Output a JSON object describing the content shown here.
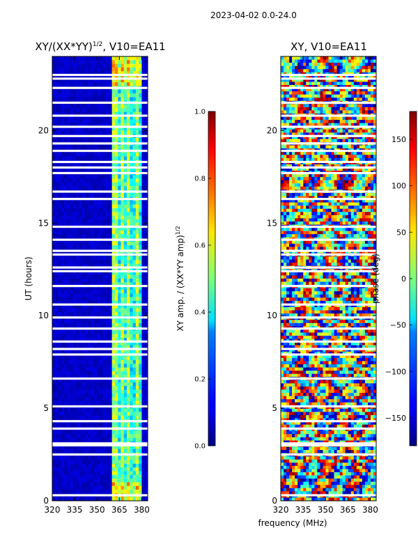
{
  "suptitle": "2023-04-02 0.0-24.0",
  "shared_xlabel": "frequency (MHz)",
  "chart_data": [
    {
      "type": "heatmap",
      "title": "XY/(XX*YY)^{1/2}, V10=EA11",
      "title_main": "XY/(XX*YY)",
      "title_sup": "1/2",
      "title_tail": ", V10=EA11",
      "xlabel": "frequency (MHz)",
      "ylabel": "UT (hours)",
      "xlim": [
        320,
        384
      ],
      "ylim": [
        0,
        24
      ],
      "x_ticks": [
        320,
        335,
        350,
        365,
        380
      ],
      "y_ticks": [
        0,
        5,
        10,
        15,
        20
      ],
      "colorbar": {
        "label": "XY amp. / (XX*YY amp)^{1/2}",
        "label_main": "XY amp. / (XX*YY amp)",
        "label_sup": "1/2",
        "range": [
          0.0,
          1.0
        ],
        "ticks": [
          "0.0",
          "0.2",
          "0.4",
          "0.6",
          "0.8",
          "1.0"
        ],
        "colormap": "jet"
      },
      "flagged_ut_hours": [
        0.3,
        2.5,
        3.0,
        3.1,
        3.9,
        4.3,
        5.1,
        6.6,
        7.9,
        8.2,
        8.6,
        9.3,
        9.9,
        10.6,
        11.6,
        12.4,
        12.6,
        13.3,
        13.5,
        14.1,
        14.8,
        16.3,
        16.7,
        17.7,
        18.0,
        18.3,
        18.9,
        19.3,
        19.7,
        20.2,
        20.8,
        21.5,
        22.3,
        22.8,
        23.0
      ],
      "high_amplitude_band_mhz": [
        361,
        380
      ]
    },
    {
      "type": "heatmap",
      "title": "XY, V10=EA11",
      "xlabel": "frequency (MHz)",
      "ylabel": "",
      "xlim": [
        320,
        384
      ],
      "ylim": [
        0,
        24
      ],
      "x_ticks": [
        320,
        335,
        350,
        365,
        380
      ],
      "y_ticks": [
        0,
        5,
        10,
        15,
        20
      ],
      "colorbar": {
        "label": "phase (deg)",
        "range": [
          -180,
          180
        ],
        "ticks": [
          "150",
          "100",
          "50",
          "0",
          "−50",
          "−100",
          "−150"
        ],
        "colormap": "jet"
      },
      "flagged_ut_hours": [
        0.3,
        2.5,
        3.0,
        3.1,
        3.9,
        4.3,
        5.1,
        6.6,
        7.9,
        8.2,
        8.6,
        9.3,
        9.9,
        10.6,
        11.6,
        12.4,
        12.6,
        13.3,
        13.5,
        14.1,
        14.8,
        16.3,
        16.7,
        17.7,
        18.0,
        18.3,
        18.9,
        19.3,
        19.7,
        20.2,
        20.8,
        21.5,
        22.3,
        22.8,
        23.0
      ]
    }
  ]
}
